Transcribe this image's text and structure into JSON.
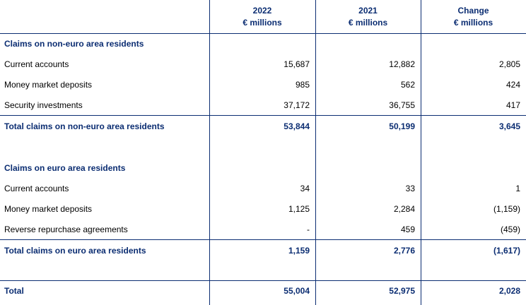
{
  "table": {
    "columns": [
      {
        "year": "2022",
        "unit": "€ millions"
      },
      {
        "year": "2021",
        "unit": "€ millions"
      },
      {
        "year": "Change",
        "unit": "€ millions"
      }
    ],
    "sections": [
      {
        "title": "Claims on non-euro area residents",
        "rows": [
          {
            "label": "Current accounts",
            "values": [
              "15,687",
              "12,882",
              "2,805"
            ]
          },
          {
            "label": "Money market deposits",
            "values": [
              "985",
              "562",
              "424"
            ]
          },
          {
            "label": "Security investments",
            "values": [
              "37,172",
              "36,755",
              "417"
            ]
          }
        ],
        "total": {
          "label": "Total claims on non-euro area residents",
          "values": [
            "53,844",
            "50,199",
            "3,645"
          ]
        }
      },
      {
        "title": "Claims on euro area residents",
        "rows": [
          {
            "label": "Current accounts",
            "values": [
              "34",
              "33",
              "1"
            ]
          },
          {
            "label": "Money market deposits",
            "values": [
              "1,125",
              "2,284",
              "(1,159)"
            ]
          },
          {
            "label": "Reverse repurchase agreements",
            "values": [
              "-",
              "459",
              "(459)"
            ]
          }
        ],
        "total": {
          "label": "Total claims on euro area residents",
          "values": [
            "1,159",
            "2,776",
            "(1,617)"
          ]
        }
      }
    ],
    "grand_total": {
      "label": "Total",
      "values": [
        "55,004",
        "52,975",
        "2,028"
      ]
    }
  }
}
